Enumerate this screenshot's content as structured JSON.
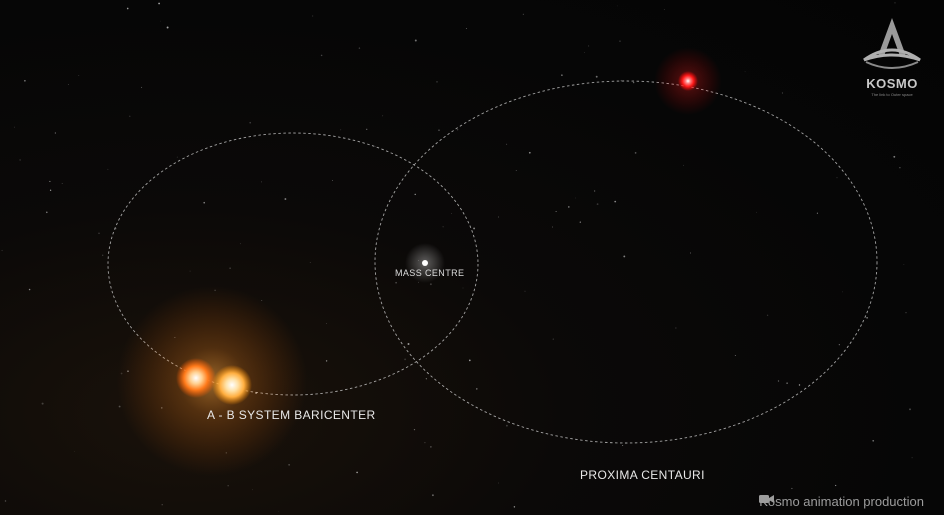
{
  "labels": {
    "mass_centre": "MASS CENTRE",
    "ab_barycenter": "A - B SYSTEM BARICENTER",
    "proxima": "PROXIMA CENTAURI"
  },
  "logo": {
    "icon": "kosmo-rocket-logo-icon",
    "word": "KOSMO",
    "tagline": "The link to Outer space"
  },
  "credit": {
    "icon": "video-camera-icon",
    "text": "Kosmo animation production"
  },
  "colors": {
    "background": "#050505",
    "orbit": "#d8d8d8",
    "alpha_a": "#ff7a1a",
    "alpha_b": "#ffb347",
    "proxima": "#ff2020",
    "mass_centre": "#ffffff"
  }
}
